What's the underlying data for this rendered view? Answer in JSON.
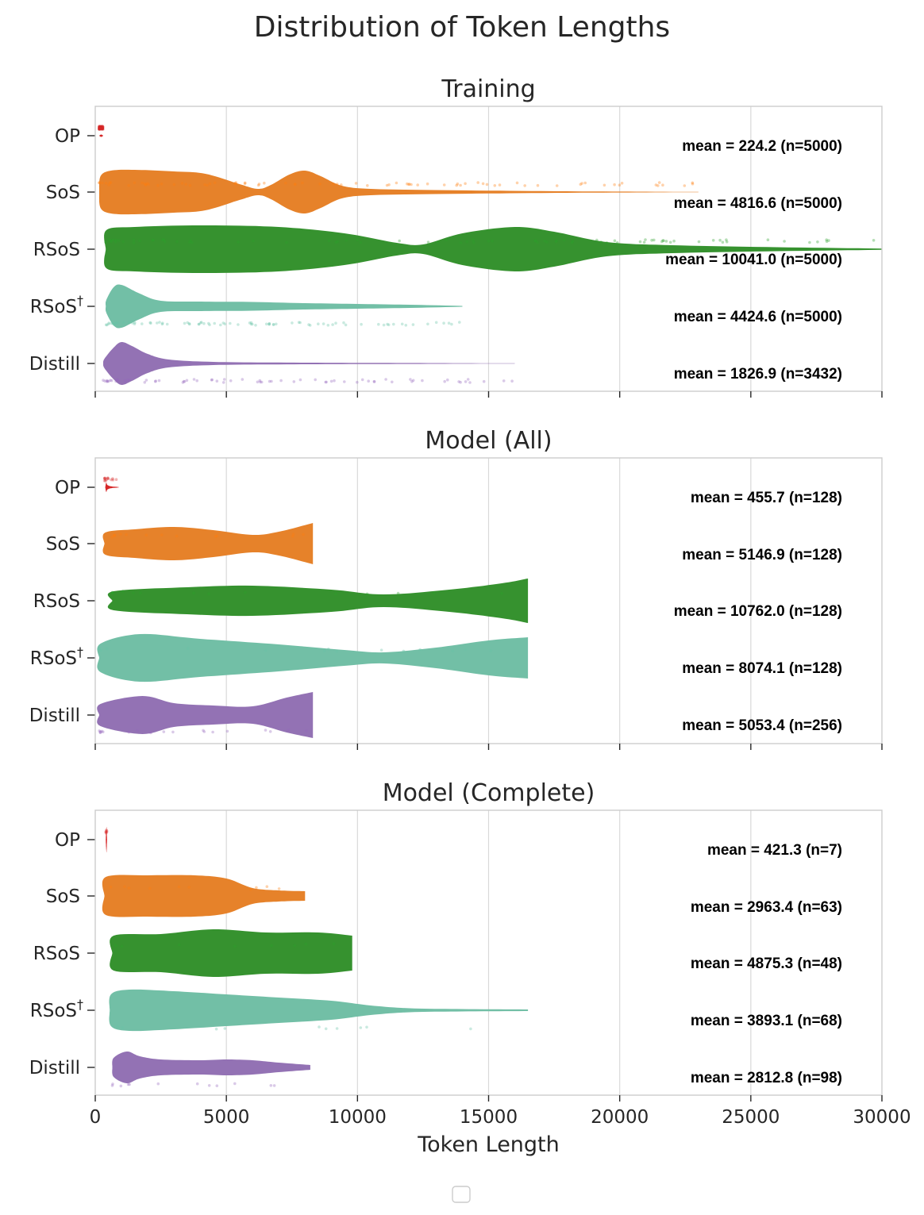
{
  "figure": {
    "title": "Distribution of Token Lengths",
    "legend_box": "empty legend, bottom-center"
  },
  "colors": {
    "OP": "#d62728",
    "SoS": "#e6822a",
    "RSoS": "#36922f",
    "RSoS_dagger": "#72bfa6",
    "Distill": "#9372b4",
    "jitter_OP": "#d62728",
    "jitter_SoS": "#ff7f0e",
    "jitter_RSoS": "#2ca02c",
    "jitter_RSoS_dagger": "#66c2a5",
    "jitter_Distill": "#9467bd"
  },
  "chart_data": [
    {
      "type": "violin",
      "orientation": "horizontal",
      "title": "Training",
      "xlabel": "",
      "ylabel": "",
      "xlim": [
        0,
        30000
      ],
      "xticks": [
        0,
        5000,
        10000,
        15000,
        20000,
        25000,
        30000
      ],
      "show_xtick_labels": false,
      "grid": "vertical",
      "categories": [
        "OP",
        "SoS",
        "RSoS",
        "RSoS",
        "Distill"
      ],
      "category_superscripts": [
        "",
        "",
        "",
        "†",
        ""
      ],
      "series": [
        {
          "category": "OP",
          "mean": 224.2,
          "n": 5000,
          "min": 150,
          "max": 300,
          "annotation": "mean = 224.2 (n=5000)"
        },
        {
          "category": "SoS",
          "mean": 4816.6,
          "n": 5000,
          "min": 150,
          "max": 23000,
          "annotation": "mean = 4816.6 (n=5000)"
        },
        {
          "category": "RSoS",
          "mean": 10041.0,
          "n": 5000,
          "min": 400,
          "max": 30000,
          "annotation": "mean = 10041.0 (n=5000)"
        },
        {
          "category": "RSoS†",
          "mean": 4424.6,
          "n": 5000,
          "min": 400,
          "max": 14000,
          "annotation": "mean = 4424.6 (n=5000)"
        },
        {
          "category": "Distill",
          "mean": 1826.9,
          "n": 3432,
          "min": 300,
          "max": 16000,
          "annotation": "mean = 1826.9 (n=3432)"
        }
      ]
    },
    {
      "type": "violin",
      "orientation": "horizontal",
      "title": "Model (All)",
      "xlabel": "",
      "ylabel": "",
      "xlim": [
        0,
        30000
      ],
      "xticks": [
        0,
        5000,
        10000,
        15000,
        20000,
        25000,
        30000
      ],
      "show_xtick_labels": false,
      "grid": "vertical",
      "categories": [
        "OP",
        "SoS",
        "RSoS",
        "RSoS",
        "Distill"
      ],
      "category_superscripts": [
        "",
        "",
        "",
        "†",
        ""
      ],
      "series": [
        {
          "category": "OP",
          "mean": 455.7,
          "n": 128,
          "min": 350,
          "max": 900,
          "annotation": "mean = 455.7 (n=128)"
        },
        {
          "category": "SoS",
          "mean": 5146.9,
          "n": 128,
          "min": 350,
          "max": 8300,
          "annotation": "mean = 5146.9 (n=128)"
        },
        {
          "category": "RSoS",
          "mean": 10762.0,
          "n": 128,
          "min": 650,
          "max": 16500,
          "annotation": "mean = 10762.0 (n=128)"
        },
        {
          "category": "RSoS†",
          "mean": 8074.1,
          "n": 128,
          "min": 150,
          "max": 16500,
          "annotation": "mean = 8074.1 (n=128)"
        },
        {
          "category": "Distill",
          "mean": 5053.4,
          "n": 256,
          "min": 150,
          "max": 8300,
          "annotation": "mean = 5053.4 (n=256)"
        }
      ]
    },
    {
      "type": "violin",
      "orientation": "horizontal",
      "title": "Model (Complete)",
      "xlabel": "Token Length",
      "ylabel": "",
      "xlim": [
        0,
        30000
      ],
      "xticks": [
        0,
        5000,
        10000,
        15000,
        20000,
        25000,
        30000
      ],
      "xtick_labels": [
        "0",
        "5000",
        "10000",
        "15000",
        "20000",
        "25000",
        "30000"
      ],
      "show_xtick_labels": true,
      "grid": "vertical",
      "categories": [
        "OP",
        "SoS",
        "RSoS",
        "RSoS",
        "Distill"
      ],
      "category_superscripts": [
        "",
        "",
        "",
        "†",
        ""
      ],
      "series": [
        {
          "category": "OP",
          "mean": 421.3,
          "n": 7,
          "min": 400,
          "max": 450,
          "annotation": "mean = 421.3 (n=7)"
        },
        {
          "category": "SoS",
          "mean": 2963.4,
          "n": 63,
          "min": 350,
          "max": 8000,
          "annotation": "mean = 2963.4 (n=63)"
        },
        {
          "category": "RSoS",
          "mean": 4875.3,
          "n": 48,
          "min": 650,
          "max": 9800,
          "annotation": "mean = 4875.3 (n=48)"
        },
        {
          "category": "RSoS†",
          "mean": 3893.1,
          "n": 68,
          "min": 550,
          "max": 16500,
          "annotation": "mean = 3893.1 (n=68)"
        },
        {
          "category": "Distill",
          "mean": 2812.8,
          "n": 98,
          "min": 650,
          "max": 8200,
          "annotation": "mean = 2812.8 (n=98)"
        }
      ]
    }
  ]
}
